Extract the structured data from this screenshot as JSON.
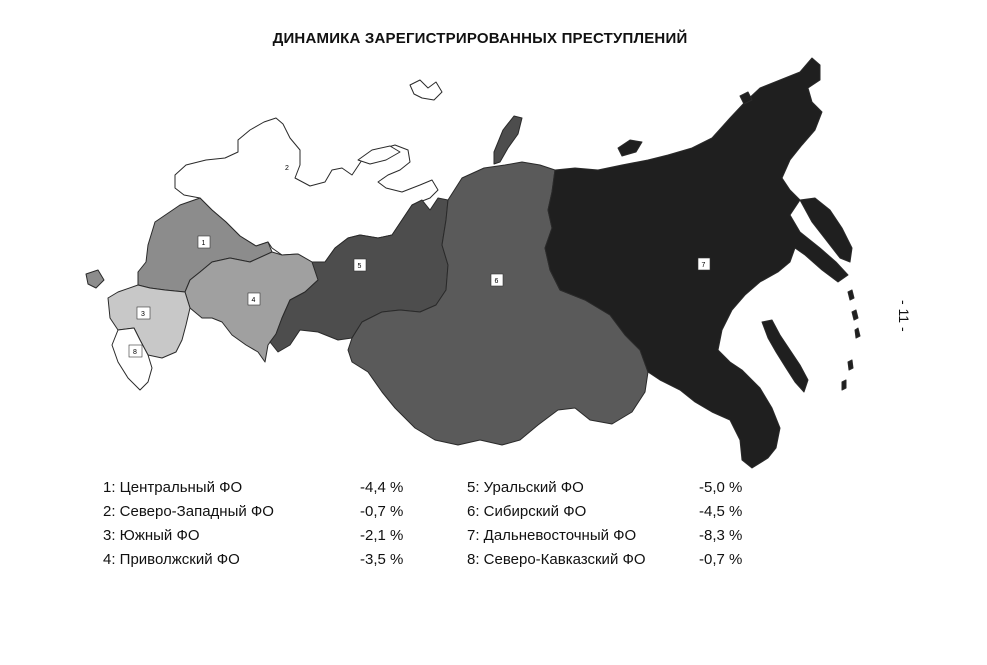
{
  "title": "ДИНАМИКА ЗАРЕГИСТРИРОВАННЫХ ПРЕСТУПЛЕНИЙ",
  "page_number": "- 11 -",
  "regions": [
    {
      "id": "1",
      "name": "Центральный ФО",
      "change": "-4,4 %",
      "fill": "#8c8c8c"
    },
    {
      "id": "2",
      "name": "Северо-Западный ФО",
      "change": "-0,7 %",
      "fill": "#ffffff"
    },
    {
      "id": "3",
      "name": "Южный ФО",
      "change": "-2,1 %",
      "fill": "#c8c8c8"
    },
    {
      "id": "4",
      "name": "Приволжский ФО",
      "change": "-3,5 %",
      "fill": "#a0a0a0"
    },
    {
      "id": "5",
      "name": "Уральский ФО",
      "change": "-5,0 %",
      "fill": "#4d4d4d"
    },
    {
      "id": "6",
      "name": "Сибирский ФО",
      "change": "-4,5 %",
      "fill": "#5a5a5a"
    },
    {
      "id": "7",
      "name": "Дальневосточный ФО",
      "change": "-8,3 %",
      "fill": "#1f1f1f"
    },
    {
      "id": "8",
      "name": "Северо-Кавказский ФО",
      "change": "-0,7 %",
      "fill": "#ffffff"
    }
  ],
  "legend": {
    "col1": [
      {
        "label": "1: Центральный ФО",
        "value": "-4,4 %"
      },
      {
        "label": "2: Северо-Западный ФО",
        "value": "-0,7 %"
      },
      {
        "label": "3: Южный ФО",
        "value": "-2,1 %"
      },
      {
        "label": "4: Приволжский ФО",
        "value": "-3,5 %"
      }
    ],
    "col2": [
      {
        "label": "5: Уральский ФО",
        "value": "-5,0 %"
      },
      {
        "label": "6: Сибирский ФО",
        "value": "-4,5 %"
      },
      {
        "label": "7: Дальневосточный ФО",
        "value": "-8,3 %"
      },
      {
        "label": "8: Северо-Кавказский ФО",
        "value": "-0,7 %"
      }
    ]
  }
}
